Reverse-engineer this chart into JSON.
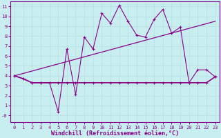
{
  "xlabel": "Windchill (Refroidissement éolien,°C)",
  "background_color": "#c8eef0",
  "grid_color": "#b8e2e4",
  "line_color": "#880088",
  "xlim": [
    -0.5,
    23.5
  ],
  "ylim": [
    -0.7,
    11.5
  ],
  "xticks": [
    0,
    1,
    2,
    3,
    4,
    5,
    6,
    7,
    8,
    9,
    10,
    11,
    12,
    13,
    14,
    15,
    16,
    17,
    18,
    19,
    20,
    21,
    22,
    23
  ],
  "yticks": [
    0,
    1,
    2,
    3,
    4,
    5,
    6,
    7,
    8,
    9,
    10,
    11
  ],
  "ytick_labels": [
    "-0",
    "1",
    "2",
    "3",
    "4",
    "5",
    "6",
    "7",
    "8",
    "9",
    "10",
    "11"
  ],
  "line1_x": [
    0,
    1,
    2,
    3,
    4,
    5,
    6,
    7,
    8,
    9,
    10,
    11,
    12,
    13,
    14,
    15,
    16,
    17,
    18,
    19,
    20,
    21,
    22,
    23
  ],
  "line1_y": [
    4.0,
    3.7,
    3.3,
    3.3,
    3.3,
    0.4,
    6.7,
    2.1,
    7.9,
    6.7,
    10.3,
    9.3,
    11.1,
    9.5,
    8.1,
    7.9,
    9.7,
    10.7,
    8.3,
    8.9,
    3.3,
    4.6,
    4.6,
    3.9
  ],
  "line2_x": [
    0,
    1,
    2,
    3,
    4,
    5,
    6,
    7,
    8,
    9,
    10,
    11,
    12,
    13,
    14,
    15,
    16,
    17,
    18,
    19,
    20,
    21,
    22,
    23
  ],
  "line2_y": [
    4.0,
    3.7,
    3.3,
    3.3,
    3.3,
    3.3,
    3.3,
    3.3,
    3.3,
    3.3,
    3.3,
    3.3,
    3.3,
    3.3,
    3.3,
    3.3,
    3.3,
    3.3,
    3.3,
    3.3,
    3.3,
    3.3,
    3.3,
    3.9
  ],
  "line3_x": [
    0,
    23
  ],
  "line3_y": [
    4.0,
    9.5
  ],
  "font_size": 5.5,
  "tick_font_size": 5.0,
  "xlabel_font_size": 6.0
}
